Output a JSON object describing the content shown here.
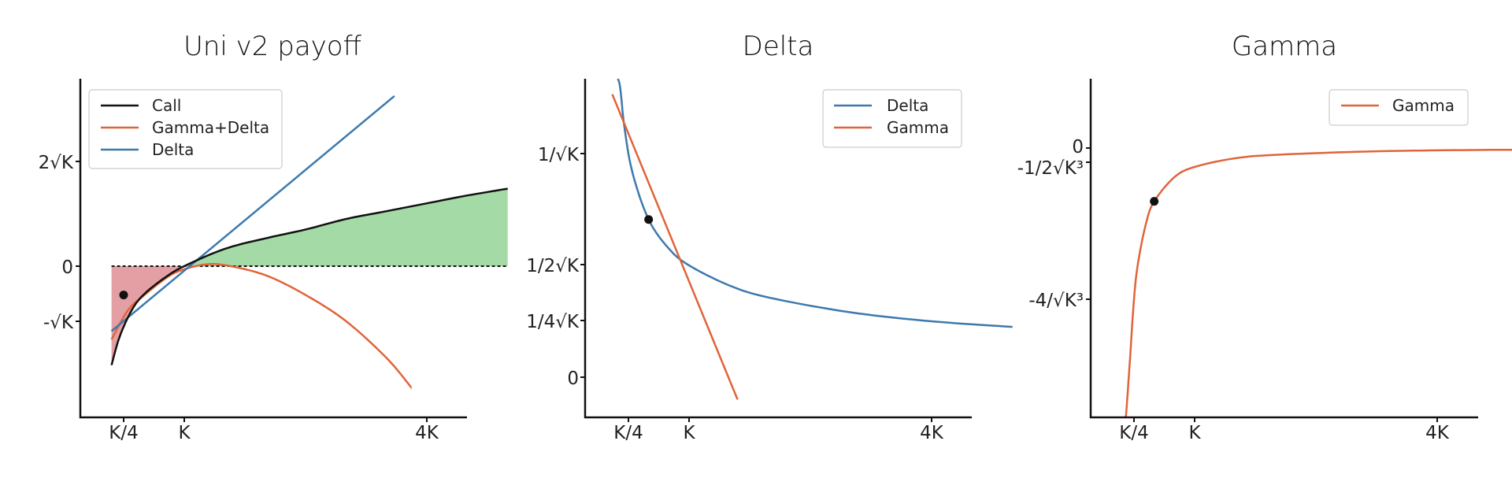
{
  "colors": {
    "call": "#111111",
    "gamma_delta": "#e0643a",
    "delta": "#3d79ad",
    "green_fill": "#9fd8a0",
    "red_fill": "#e19a9f",
    "point": "#111111"
  },
  "chart_data": [
    {
      "type": "line",
      "title": "Uni v2 payoff",
      "x_ticks": [
        "K/4",
        "K",
        "4K"
      ],
      "y_ticks": [
        "2√K",
        "0",
        "-√K"
      ],
      "legend": {
        "placement": "top-left",
        "entries": [
          "Call",
          "Gamma+Delta",
          "Delta"
        ]
      },
      "series": [
        {
          "name": "Call",
          "x": [
            0.1,
            0.2,
            0.35,
            0.5,
            0.75,
            1.0,
            1.5,
            2.0,
            2.5,
            3.0,
            3.5,
            4.0,
            4.5,
            5.0
          ],
          "y": [
            -1.89,
            -1.35,
            -0.84,
            -0.54,
            -0.23,
            0.0,
            0.33,
            0.53,
            0.7,
            0.9,
            1.05,
            1.2,
            1.35,
            1.48
          ]
        },
        {
          "name": "Gamma+Delta",
          "x": [
            0.1,
            0.3,
            0.5,
            0.8,
            1.0,
            1.25,
            1.5,
            2.0,
            2.5,
            3.0,
            3.5,
            3.8
          ],
          "y": [
            -1.4,
            -0.85,
            -0.56,
            -0.2,
            -0.06,
            0.03,
            0.02,
            -0.17,
            -0.55,
            -1.05,
            -1.75,
            -2.3
          ]
        },
        {
          "name": "Delta",
          "x": [
            0.1,
            3.6
          ],
          "y": [
            -1.24,
            3.25
          ]
        }
      ],
      "fills": [
        {
          "between": [
            "Call",
            "zero"
          ],
          "x_range": [
            0.1,
            1.0
          ],
          "color": "red"
        },
        {
          "between": [
            "Call",
            "zero"
          ],
          "x_range": [
            1.0,
            5.0
          ],
          "color": "green"
        }
      ],
      "marker": {
        "x": 0.25,
        "y": -0.55
      },
      "hline": {
        "y": 0,
        "style": "dashed"
      }
    },
    {
      "type": "line",
      "title": "Delta",
      "x_ticks": [
        "K/4",
        "K",
        "4K"
      ],
      "y_ticks": [
        "1/√K",
        "1/2√K",
        "1/4√K",
        "0"
      ],
      "legend": {
        "placement": "top-right",
        "entries": [
          "Delta",
          "Gamma"
        ]
      },
      "series": [
        {
          "name": "Delta",
          "x": [
            0.12,
            0.15,
            0.2,
            0.3,
            0.5,
            0.75,
            1.0,
            1.5,
            2.0,
            3.0,
            4.0,
            5.0
          ],
          "y": [
            2.88,
            2.58,
            2.24,
            1.83,
            1.41,
            1.15,
            1.0,
            0.82,
            0.71,
            0.58,
            0.5,
            0.45
          ]
        },
        {
          "name": "Gamma",
          "x": [
            0.05,
            1.6
          ],
          "y": [
            2.53,
            -0.2
          ]
        }
      ],
      "marker": {
        "x": 0.5,
        "y": 1.41
      }
    },
    {
      "type": "line",
      "title": "Gamma",
      "x_ticks": [
        "K/4",
        "K",
        "4K"
      ],
      "y_ticks": [
        "0",
        "-1/2√K³",
        "-4/√K³"
      ],
      "legend": {
        "placement": "top-right",
        "entries": [
          "Gamma"
        ]
      },
      "series": [
        {
          "name": "Gamma",
          "x": [
            0.135,
            0.15,
            0.2,
            0.25,
            0.3,
            0.4,
            0.5,
            0.75,
            1.0,
            1.5,
            2.0,
            3.0,
            4.0,
            5.0
          ],
          "y": [
            -10.1,
            -8.6,
            -5.6,
            -4.0,
            -3.04,
            -1.98,
            -1.41,
            -0.77,
            -0.5,
            -0.27,
            -0.18,
            -0.1,
            -0.06,
            -0.045
          ]
        }
      ],
      "marker": {
        "x": 0.5,
        "y": -1.41
      }
    }
  ]
}
